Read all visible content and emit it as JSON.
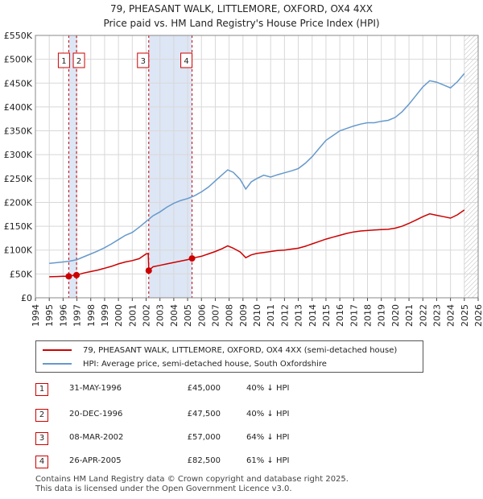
{
  "title": "79, PHEASANT WALK, LITTLEMORE, OXFORD, OX4 4XX",
  "subtitle": "Price paid vs. HM Land Registry's House Price Index (HPI)",
  "colors": {
    "property": "#cc0000",
    "hpi": "#6699cc",
    "shade": "#dde6f5",
    "grid": "#d8d8d8"
  },
  "chart_data": {
    "type": "line",
    "xlim": [
      1994,
      2026
    ],
    "ylim": [
      0,
      550000
    ],
    "ytick_labels": [
      "£0",
      "£50K",
      "£100K",
      "£150K",
      "£200K",
      "£250K",
      "£300K",
      "£350K",
      "£400K",
      "£450K",
      "£500K",
      "£550K"
    ],
    "xtick_labels": [
      "1994",
      "1995",
      "1996",
      "1997",
      "1998",
      "1999",
      "2000",
      "2001",
      "2002",
      "2003",
      "2004",
      "2005",
      "2006",
      "2007",
      "2008",
      "2009",
      "2010",
      "2011",
      "2012",
      "2013",
      "2014",
      "2015",
      "2016",
      "2017",
      "2018",
      "2019",
      "2020",
      "2021",
      "2022",
      "2023",
      "2024",
      "2025",
      "2026"
    ],
    "shaded_ranges": [
      [
        1996.41,
        1996.97
      ],
      [
        2002.19,
        2005.32
      ]
    ],
    "future_from": 2025.0,
    "series": [
      {
        "name": "79, PHEASANT WALK, LITTLEMORE, OXFORD, OX4 4XX (semi-detached house)",
        "x": [
          1995.0,
          1995.5,
          1996.0,
          1996.41,
          1996.5,
          1996.97,
          1997.5,
          1998.0,
          1998.5,
          1999.0,
          1999.5,
          2000.0,
          2000.5,
          2001.0,
          2001.5,
          2002.0,
          2002.15,
          2002.19,
          2002.5,
          2003.0,
          2003.5,
          2004.0,
          2004.5,
          2005.0,
          2005.32,
          2005.5,
          2006.0,
          2006.5,
          2007.0,
          2007.5,
          2007.9,
          2008.3,
          2008.8,
          2009.2,
          2009.6,
          2010.0,
          2010.5,
          2011.0,
          2011.5,
          2012.0,
          2012.5,
          2013.0,
          2013.5,
          2014.0,
          2014.5,
          2015.0,
          2015.5,
          2016.0,
          2016.5,
          2017.0,
          2017.5,
          2018.0,
          2018.5,
          2019.0,
          2019.5,
          2020.0,
          2020.5,
          2021.0,
          2021.5,
          2022.0,
          2022.5,
          2023.0,
          2023.5,
          2024.0,
          2024.5,
          2025.0
        ],
        "y": [
          44000,
          44500,
          45000,
          45000,
          46000,
          47500,
          52000,
          55000,
          58000,
          62000,
          66000,
          71000,
          75000,
          78000,
          82000,
          92000,
          93000,
          57000,
          65000,
          68000,
          71000,
          74000,
          77000,
          80000,
          82500,
          84000,
          87000,
          92000,
          97000,
          103000,
          109000,
          104000,
          96000,
          84000,
          90000,
          93000,
          95000,
          97000,
          99000,
          100000,
          102000,
          104000,
          108000,
          113000,
          118000,
          123000,
          127000,
          131000,
          135000,
          138000,
          140000,
          141000,
          142000,
          143000,
          143500,
          146000,
          150000,
          156000,
          163000,
          170000,
          176000,
          173000,
          170000,
          167000,
          174000,
          184000
        ]
      },
      {
        "name": "HPI: Average price, semi-detached house, South Oxfordshire",
        "x": [
          1995.0,
          1995.5,
          1996.0,
          1996.5,
          1997.0,
          1997.5,
          1998.0,
          1998.5,
          1999.0,
          1999.5,
          2000.0,
          2000.5,
          2001.0,
          2001.5,
          2002.0,
          2002.5,
          2003.0,
          2003.5,
          2004.0,
          2004.5,
          2005.0,
          2005.5,
          2006.0,
          2006.5,
          2007.0,
          2007.5,
          2007.9,
          2008.3,
          2008.8,
          2009.2,
          2009.6,
          2010.0,
          2010.5,
          2011.0,
          2011.5,
          2012.0,
          2012.5,
          2013.0,
          2013.5,
          2014.0,
          2014.5,
          2015.0,
          2015.5,
          2016.0,
          2016.5,
          2017.0,
          2017.5,
          2018.0,
          2018.5,
          2019.0,
          2019.5,
          2020.0,
          2020.5,
          2021.0,
          2021.5,
          2022.0,
          2022.5,
          2023.0,
          2023.5,
          2024.0,
          2024.5,
          2025.0
        ],
        "y": [
          72000,
          73500,
          75000,
          77000,
          80000,
          86000,
          92000,
          98000,
          105000,
          113000,
          122000,
          131000,
          137000,
          148000,
          160000,
          172000,
          180000,
          190000,
          198000,
          204000,
          208000,
          214000,
          222000,
          232000,
          245000,
          258000,
          268000,
          263000,
          248000,
          228000,
          243000,
          250000,
          257000,
          253000,
          258000,
          262000,
          266000,
          271000,
          282000,
          296000,
          313000,
          330000,
          340000,
          350000,
          355000,
          360000,
          364000,
          367000,
          367000,
          370000,
          372000,
          378000,
          390000,
          406000,
          424000,
          442000,
          455000,
          452000,
          446000,
          440000,
          453000,
          470000
        ]
      }
    ],
    "sales": [
      {
        "num": "1",
        "x": 1996.41,
        "y": 45000,
        "date": "31-MAY-1996",
        "price": "£45,000",
        "hpi": "40% ↓ HPI"
      },
      {
        "num": "2",
        "x": 1996.97,
        "y": 47500,
        "date": "20-DEC-1996",
        "price": "£47,500",
        "hpi": "40% ↓ HPI"
      },
      {
        "num": "3",
        "x": 2002.19,
        "y": 57000,
        "date": "08-MAR-2002",
        "price": "£57,000",
        "hpi": "64% ↓ HPI"
      },
      {
        "num": "4",
        "x": 2005.32,
        "y": 82500,
        "date": "26-APR-2005",
        "price": "£82,500",
        "hpi": "61% ↓ HPI"
      }
    ]
  },
  "legend": {
    "property": "79, PHEASANT WALK, LITTLEMORE, OXFORD, OX4 4XX (semi-detached house)",
    "hpi": "HPI: Average price, semi-detached house, South Oxfordshire"
  },
  "footer": {
    "line1": "Contains HM Land Registry data © Crown copyright and database right 2025.",
    "line2": "This data is licensed under the Open Government Licence v3.0."
  }
}
